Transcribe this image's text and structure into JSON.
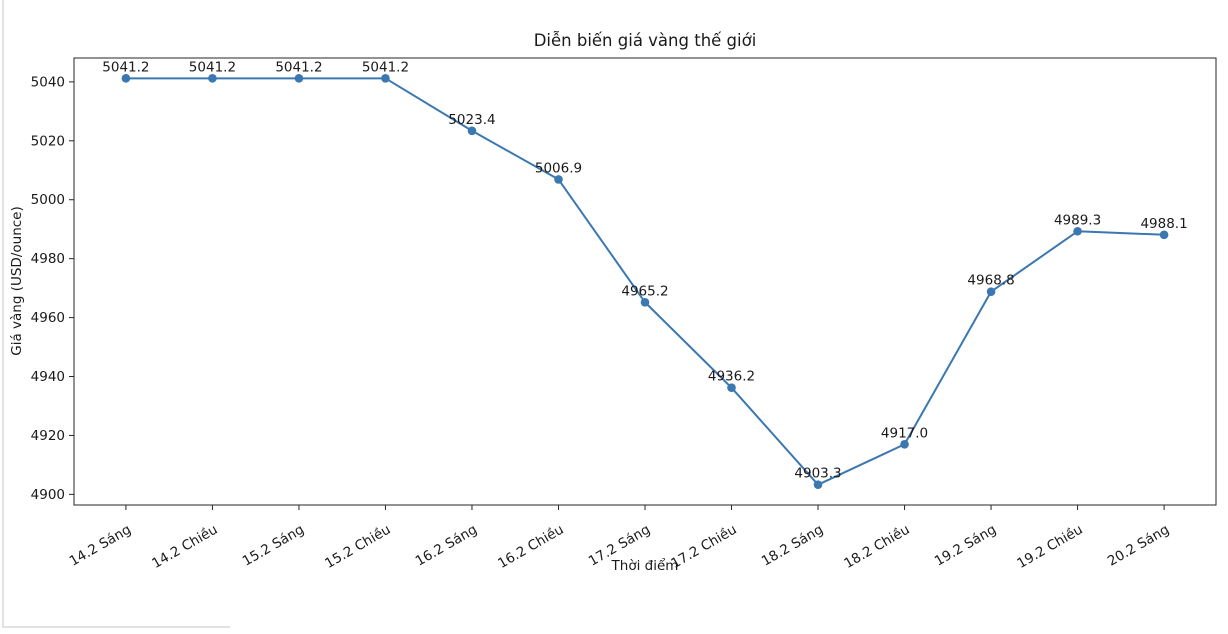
{
  "page": {
    "background": "#ffffff",
    "edge_color": "#e2e2e2"
  },
  "chart_data": {
    "type": "line",
    "title": "Diễn biến giá vàng thế giới",
    "xlabel": "Thời điểm",
    "ylabel": "Giá vàng (USD/ounce)",
    "categories": [
      "14.2 Sáng",
      "14.2 Chiều",
      "15.2 Sáng",
      "15.2 Chiều",
      "16.2 Sáng",
      "16.2 Chiều",
      "17.2 Sáng",
      "17.2 Chiều",
      "18.2 Sáng",
      "18.2 Chiều",
      "19.2 Sáng",
      "19.2 Chiều",
      "20.2 Sáng"
    ],
    "values": [
      5041.2,
      5041.2,
      5041.2,
      5041.2,
      5023.4,
      5006.9,
      4965.2,
      4936.2,
      4903.3,
      4917.0,
      4968.8,
      4989.3,
      4988.1
    ],
    "data_labels": [
      "5041.2",
      "5041.2",
      "5041.2",
      "5041.2",
      "5023.4",
      "5006.9",
      "4965.2",
      "4936.2",
      "4903.3",
      "4917.0",
      "4968.8",
      "4989.3",
      "4988.1"
    ],
    "y_ticks": [
      4900,
      4920,
      4940,
      4960,
      4980,
      5000,
      5020,
      5040
    ],
    "ylim": [
      4896.4,
      5048.1
    ],
    "x_tick_rotation": 30,
    "grid": false,
    "legend": null,
    "line_color": "#3b77b0",
    "marker_color": "#3b77b0",
    "marker": "o",
    "axis_color": "#262626",
    "text_color": "#1a1a1a"
  }
}
